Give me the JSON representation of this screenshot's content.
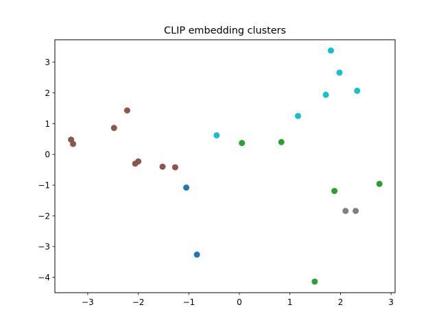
{
  "chart_data": {
    "type": "scatter",
    "title": "CLIP embedding clusters",
    "xlabel": "",
    "ylabel": "",
    "xlim": [
      -3.65,
      3.08
    ],
    "ylim": [
      -4.5,
      3.73
    ],
    "xticks": [
      -3,
      -2,
      -1,
      0,
      1,
      2,
      3
    ],
    "xtick_labels": [
      "−3",
      "−2",
      "−1",
      "0",
      "1",
      "2",
      "3"
    ],
    "yticks": [
      -4,
      -3,
      -2,
      -1,
      0,
      1,
      2,
      3
    ],
    "ytick_labels": [
      "−4",
      "−3",
      "−2",
      "−1",
      "0",
      "1",
      "2",
      "3"
    ],
    "grid": false,
    "legend": "none",
    "series": [
      {
        "color": "#8c564b",
        "points": [
          {
            "x": -3.33,
            "y": 0.48
          },
          {
            "x": -3.29,
            "y": 0.34
          },
          {
            "x": -2.48,
            "y": 0.86
          },
          {
            "x": -2.22,
            "y": 1.43
          },
          {
            "x": -2.06,
            "y": -0.3
          },
          {
            "x": -2.0,
            "y": -0.23
          },
          {
            "x": -1.52,
            "y": -0.4
          },
          {
            "x": -1.27,
            "y": -0.42
          }
        ]
      },
      {
        "color": "#1f77b4",
        "points": [
          {
            "x": -1.05,
            "y": -1.08
          },
          {
            "x": -0.84,
            "y": -3.26
          }
        ]
      },
      {
        "color": "#17becf",
        "points": [
          {
            "x": -0.45,
            "y": 0.62
          },
          {
            "x": 1.16,
            "y": 1.25
          },
          {
            "x": 1.71,
            "y": 1.94
          },
          {
            "x": 1.81,
            "y": 3.38
          },
          {
            "x": 1.98,
            "y": 2.66
          },
          {
            "x": 2.33,
            "y": 2.07
          }
        ]
      },
      {
        "color": "#2ca02c",
        "points": [
          {
            "x": 0.05,
            "y": 0.37
          },
          {
            "x": 0.83,
            "y": 0.4
          },
          {
            "x": 1.49,
            "y": -4.14
          },
          {
            "x": 1.88,
            "y": -1.19
          },
          {
            "x": 2.77,
            "y": -0.96
          }
        ]
      },
      {
        "color": "#7f7f7f",
        "points": [
          {
            "x": 2.1,
            "y": -1.84
          },
          {
            "x": 2.3,
            "y": -1.84
          }
        ]
      }
    ]
  }
}
